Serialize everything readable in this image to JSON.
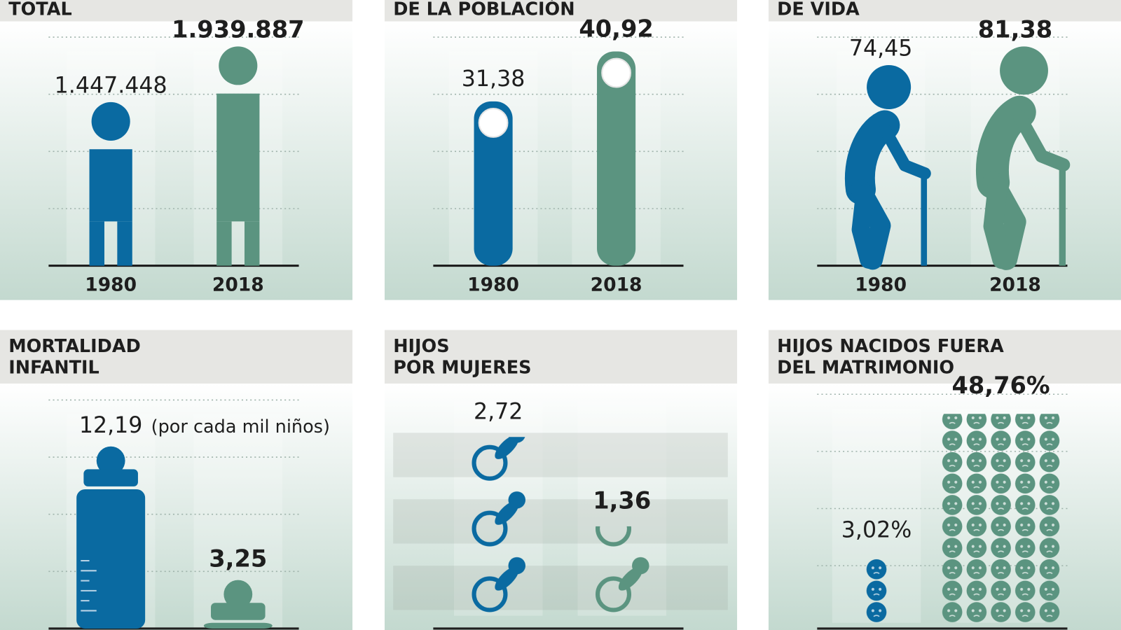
{
  "chart_data": [
    {
      "type": "pictogram",
      "icon": "person",
      "title": [
        "TOTAL"
      ],
      "categories": [
        "1980",
        "2018"
      ],
      "values": [
        1447448,
        1939887
      ],
      "value_labels": [
        "1.447.448",
        "1.939.887"
      ],
      "colors": [
        "#0a6aa1",
        "#5b9480"
      ]
    },
    {
      "type": "pictogram",
      "icon": "pin",
      "title": [
        "DE LA POBLACIÓN"
      ],
      "categories": [
        "1980",
        "2018"
      ],
      "values": [
        31.38,
        40.92
      ],
      "value_labels": [
        "31,38",
        "40,92"
      ],
      "colors": [
        "#0a6aa1",
        "#5b9480"
      ]
    },
    {
      "type": "pictogram",
      "icon": "elder",
      "title": [
        "DE VIDA"
      ],
      "categories": [
        "1980",
        "2018"
      ],
      "values": [
        74.45,
        81.38
      ],
      "value_labels": [
        "74,45",
        "81,38"
      ],
      "colors": [
        "#0a6aa1",
        "#5b9480"
      ]
    },
    {
      "type": "pictogram",
      "icon": "bottle",
      "title": [
        "MORTALIDAD",
        "INFANTIL"
      ],
      "values": [
        12.19,
        3.25
      ],
      "value_labels": [
        "12,19",
        "3,25"
      ],
      "note": "(por cada mil niños)",
      "colors": [
        "#0a6aa1",
        "#5b9480"
      ]
    },
    {
      "type": "pictogram",
      "icon": "pacifier",
      "title": [
        "HIJOS",
        "POR MUJERES"
      ],
      "values": [
        2.72,
        1.36
      ],
      "value_labels": [
        "2,72",
        "1,36"
      ],
      "colors": [
        "#0a6aa1",
        "#5b9480"
      ]
    },
    {
      "type": "pictogram",
      "icon": "face",
      "title": [
        "HIJOS NACIDOS FUERA",
        "DEL MATRIMONIO"
      ],
      "values": [
        3.02,
        48.76
      ],
      "value_labels": [
        "3,02%",
        "48,76%"
      ],
      "colors": [
        "#0a6aa1",
        "#5b9480"
      ]
    }
  ]
}
